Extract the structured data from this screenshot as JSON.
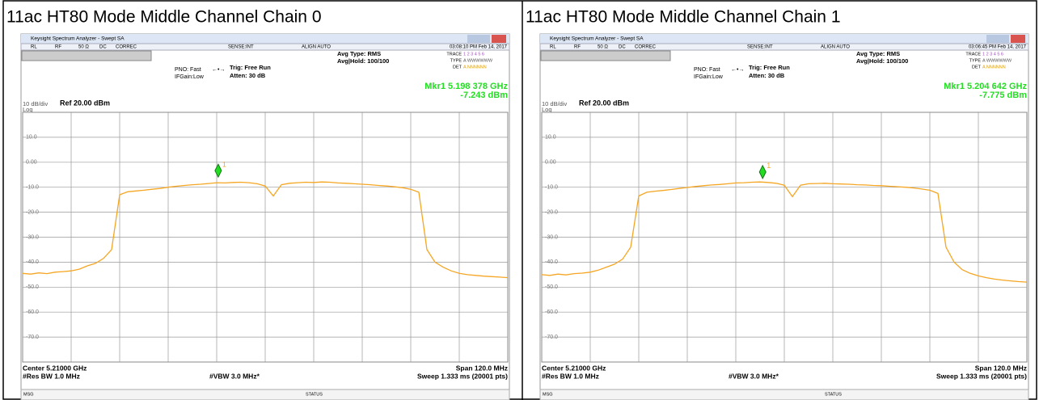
{
  "chart_data": [
    {
      "type": "line",
      "title": "11ac HT80 Mode Middle Channel Chain 0",
      "window_title": "Keysight Spectrum Analyzer - Swept SA",
      "status_items": [
        "RL",
        "RF",
        "50 Ω",
        "DC",
        "CORREC",
        "SENSE:INT",
        "ALIGN AUTO",
        "03:08:10 PM Feb 14, 2017"
      ],
      "pno": "PNO: Fast",
      "ifgain": "IFGain:Low",
      "trig": "Trig: Free Run",
      "atten": "Atten: 30 dB",
      "avg_type": "Avg Type: RMS",
      "avg_hold": "Avg|Hold: 100/100",
      "trace_labels": [
        "TRACE",
        "TYPE",
        "DET"
      ],
      "trace_values": [
        "1 2 3 4 5 6",
        "A WWWWWW",
        "A NNNNNN"
      ],
      "marker_label": "Mkr1 5.198 378 GHz",
      "marker_level": "-7.243 dBm",
      "marker": {
        "x": 5.198378,
        "y": -7.243,
        "label": "1"
      },
      "scale": "10 dB/div",
      "scale_type": "Log",
      "ref": "Ref 20.00 dBm",
      "center": "Center 5.21000 GHz",
      "res_bw": "#Res BW 1.0 MHz",
      "vbw": "#VBW 3.0 MHz*",
      "span": "Span 120.0 MHz",
      "sweep": "Sweep  1.333 ms (20001 pts)",
      "msg": "MSG",
      "status": "STATUS",
      "color": "#f5a623",
      "grid": true,
      "xlim": [
        5.15,
        5.27
      ],
      "ylim": [
        -80,
        20
      ],
      "yticks": [
        {
          "value": 10,
          "label": "10.0"
        },
        {
          "value": 0,
          "label": "0.00"
        },
        {
          "value": -10,
          "label": "-10.0"
        },
        {
          "value": -20,
          "label": "-20.0"
        },
        {
          "value": -30,
          "label": "-30.0"
        },
        {
          "value": -40,
          "label": "-40.0"
        },
        {
          "value": -50,
          "label": "-50.0"
        },
        {
          "value": -60,
          "label": "-60.0"
        },
        {
          "value": -70,
          "label": "-70.0"
        }
      ],
      "x": [
        5.15,
        5.152,
        5.154,
        5.156,
        5.158,
        5.16,
        5.162,
        5.164,
        5.166,
        5.168,
        5.17,
        5.172,
        5.174,
        5.176,
        5.178,
        5.18,
        5.182,
        5.184,
        5.186,
        5.188,
        5.19,
        5.192,
        5.194,
        5.196,
        5.198,
        5.2,
        5.202,
        5.204,
        5.206,
        5.208,
        5.21,
        5.212,
        5.214,
        5.216,
        5.218,
        5.22,
        5.222,
        5.224,
        5.226,
        5.228,
        5.23,
        5.232,
        5.234,
        5.236,
        5.238,
        5.24,
        5.242,
        5.244,
        5.246,
        5.248,
        5.25,
        5.252,
        5.254,
        5.256,
        5.258,
        5.26,
        5.262,
        5.264,
        5.266,
        5.268,
        5.27
      ],
      "values": [
        -44.5,
        -44.8,
        -44.3,
        -44.6,
        -44.0,
        -43.8,
        -43.5,
        -42.8,
        -41.5,
        -40.5,
        -38.5,
        -35,
        -13,
        -11.8,
        -11.5,
        -11.2,
        -10.8,
        -10.5,
        -10.0,
        -9.6,
        -9.3,
        -9.0,
        -8.8,
        -8.5,
        -8.2,
        -8.3,
        -8.1,
        -8.0,
        -8.2,
        -8.6,
        -9.5,
        -13.5,
        -9.0,
        -8.4,
        -8.2,
        -8.0,
        -8.1,
        -7.9,
        -8.0,
        -8.3,
        -8.4,
        -8.6,
        -8.8,
        -9.0,
        -9.3,
        -9.5,
        -9.8,
        -10.2,
        -10.8,
        -12,
        -35,
        -40,
        -42,
        -43.5,
        -44.5,
        -45,
        -45.3,
        -45.6,
        -45.8,
        -46,
        -46.2
      ]
    },
    {
      "type": "line",
      "title": "11ac HT80 Mode Middle Channel Chain 1",
      "window_title": "Keysight Spectrum Analyzer - Swept SA",
      "status_items": [
        "RL",
        "RF",
        "50 Ω",
        "DC",
        "CORREC",
        "SENSE:INT",
        "ALIGN AUTO",
        "03:06:45 PM Feb 14, 2017"
      ],
      "pno": "PNO: Fast",
      "ifgain": "IFGain:Low",
      "trig": "Trig: Free Run",
      "atten": "Atten: 30 dB",
      "avg_type": "Avg Type: RMS",
      "avg_hold": "Avg|Hold: 100/100",
      "trace_labels": [
        "TRACE",
        "TYPE",
        "DET"
      ],
      "trace_values": [
        "1 2 3 4 5 6",
        "A WWWWWW",
        "A NNNNNN"
      ],
      "marker_label": "Mkr1 5.204 642 GHz",
      "marker_level": "-7.775 dBm",
      "marker": {
        "x": 5.204642,
        "y": -7.775,
        "label": "1"
      },
      "scale": "10 dB/div",
      "scale_type": "Log",
      "ref": "Ref 20.00 dBm",
      "center": "Center 5.21000 GHz",
      "res_bw": "#Res BW 1.0 MHz",
      "vbw": "#VBW 3.0 MHz*",
      "span": "Span 120.0 MHz",
      "sweep": "Sweep  1.333 ms (20001 pts)",
      "msg": "MSG",
      "status": "STATUS",
      "color": "#f5a623",
      "grid": true,
      "xlim": [
        5.15,
        5.27
      ],
      "ylim": [
        -80,
        20
      ],
      "yticks": [
        {
          "value": 10,
          "label": "10.0"
        },
        {
          "value": 0,
          "label": "0.00"
        },
        {
          "value": -10,
          "label": "-10.0"
        },
        {
          "value": -20,
          "label": "-20.0"
        },
        {
          "value": -30,
          "label": "-30.0"
        },
        {
          "value": -40,
          "label": "-40.0"
        },
        {
          "value": -50,
          "label": "-50.0"
        },
        {
          "value": -60,
          "label": "-60.0"
        },
        {
          "value": -70,
          "label": "-70.0"
        }
      ],
      "x": [
        5.15,
        5.152,
        5.154,
        5.156,
        5.158,
        5.16,
        5.162,
        5.164,
        5.166,
        5.168,
        5.17,
        5.172,
        5.174,
        5.176,
        5.178,
        5.18,
        5.182,
        5.184,
        5.186,
        5.188,
        5.19,
        5.192,
        5.194,
        5.196,
        5.198,
        5.2,
        5.202,
        5.204,
        5.206,
        5.208,
        5.21,
        5.212,
        5.214,
        5.216,
        5.218,
        5.22,
        5.222,
        5.224,
        5.226,
        5.228,
        5.23,
        5.232,
        5.234,
        5.236,
        5.238,
        5.24,
        5.242,
        5.244,
        5.246,
        5.248,
        5.25,
        5.252,
        5.254,
        5.256,
        5.258,
        5.26,
        5.262,
        5.264,
        5.266,
        5.268,
        5.27
      ],
      "values": [
        -45.0,
        -45.3,
        -44.8,
        -45.1,
        -44.6,
        -44.4,
        -44.0,
        -43.2,
        -42.0,
        -40.8,
        -38.8,
        -34,
        -13.5,
        -12.0,
        -11.6,
        -11.3,
        -10.9,
        -10.5,
        -10.1,
        -9.7,
        -9.4,
        -9.1,
        -8.9,
        -8.6,
        -8.3,
        -8.2,
        -8.0,
        -7.9,
        -8.1,
        -8.4,
        -9.2,
        -13.8,
        -9.2,
        -8.6,
        -8.5,
        -8.4,
        -8.6,
        -8.7,
        -8.8,
        -9.0,
        -9.1,
        -9.3,
        -9.4,
        -9.6,
        -9.8,
        -10.0,
        -10.3,
        -10.7,
        -11.2,
        -12.5,
        -34,
        -40,
        -43,
        -44.5,
        -45.5,
        -46.2,
        -46.8,
        -47.2,
        -47.5,
        -47.8,
        -48.0
      ]
    }
  ]
}
